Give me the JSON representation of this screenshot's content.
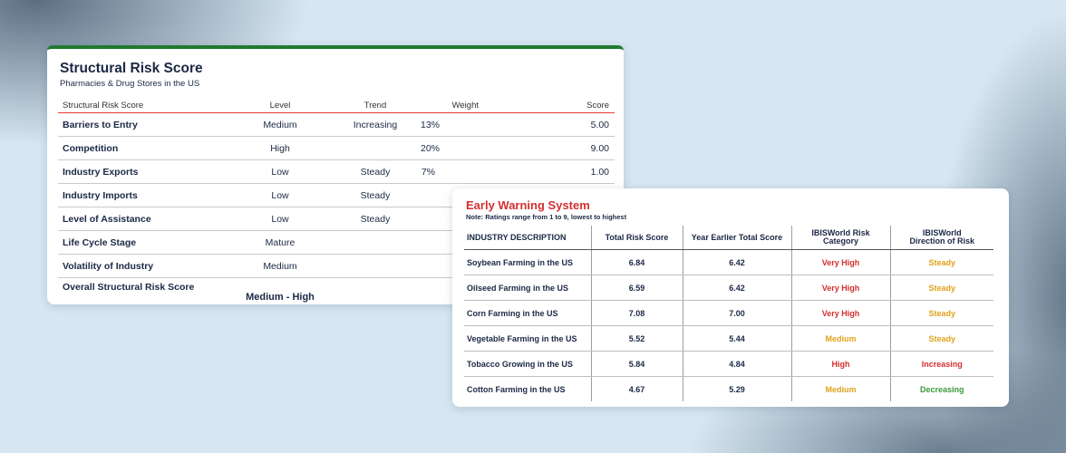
{
  "structural_risk": {
    "title": "Structural Risk Score",
    "subtitle": "Pharmacies & Drug Stores in the US",
    "headers": {
      "name": "Structural Risk Score",
      "level": "Level",
      "trend": "Trend",
      "weight": "Weight",
      "score": "Score"
    },
    "rows": [
      {
        "name": "Barriers to Entry",
        "level": "Medium",
        "trend": "Increasing",
        "weight": "13%",
        "score": "5.00"
      },
      {
        "name": "Competition",
        "level": "High",
        "trend": "",
        "weight": "20%",
        "score": "9.00"
      },
      {
        "name": "Industry Exports",
        "level": "Low",
        "trend": "Steady",
        "weight": "7%",
        "score": "1.00"
      },
      {
        "name": "Industry Imports",
        "level": "Low",
        "trend": "Steady",
        "weight": "",
        "score": ""
      },
      {
        "name": "Level of Assistance",
        "level": "Low",
        "trend": "Steady",
        "weight": "",
        "score": ""
      },
      {
        "name": "Life Cycle Stage",
        "level": "Mature",
        "trend": "",
        "weight": "",
        "score": ""
      },
      {
        "name": "Volatility of Industry",
        "level": "Medium",
        "trend": "",
        "weight": "",
        "score": ""
      }
    ],
    "overall": {
      "name": "Overall Structural Risk Score",
      "level": "Medium - High"
    }
  },
  "early_warning": {
    "title": "Early Warning System",
    "note": "Note: Ratings range from 1 to 9, lowest to highest",
    "headers": {
      "desc": "INDUSTRY DESCRIPTION",
      "total": "Total Risk Score",
      "year_earlier": "Year Earlier Total Score",
      "category_1": "IBISWorld Risk",
      "category_2": "Category",
      "direction_1": "IBISWorld",
      "direction_2": "Direction of Risk"
    },
    "rows": [
      {
        "desc": "Soybean Farming in the US",
        "total": "6.84",
        "year_earlier": "6.42",
        "category": "Very High",
        "direction": "Steady"
      },
      {
        "desc": "Oilseed Farming in the US",
        "total": "6.59",
        "year_earlier": "6.42",
        "category": "Very High",
        "direction": "Steady"
      },
      {
        "desc": "Corn Farming in the US",
        "total": "7.08",
        "year_earlier": "7.00",
        "category": "Very High",
        "direction": "Steady"
      },
      {
        "desc": "Vegetable Farming in the US",
        "total": "5.52",
        "year_earlier": "5.44",
        "category": "Medium",
        "direction": "Steady"
      },
      {
        "desc": "Tobacco Growing in the US",
        "total": "5.84",
        "year_earlier": "4.84",
        "category": "High",
        "direction": "Increasing"
      },
      {
        "desc": "Cotton Farming in the US",
        "total": "4.67",
        "year_earlier": "5.29",
        "category": "Medium",
        "direction": "Decreasing"
      }
    ]
  },
  "colors": {
    "Very High": "#d32f2f",
    "High": "#d32f2f",
    "Medium": "#e0a21b",
    "Steady": "#e0a21b",
    "Increasing": "#d32f2f",
    "Decreasing": "#3a9a3a"
  }
}
